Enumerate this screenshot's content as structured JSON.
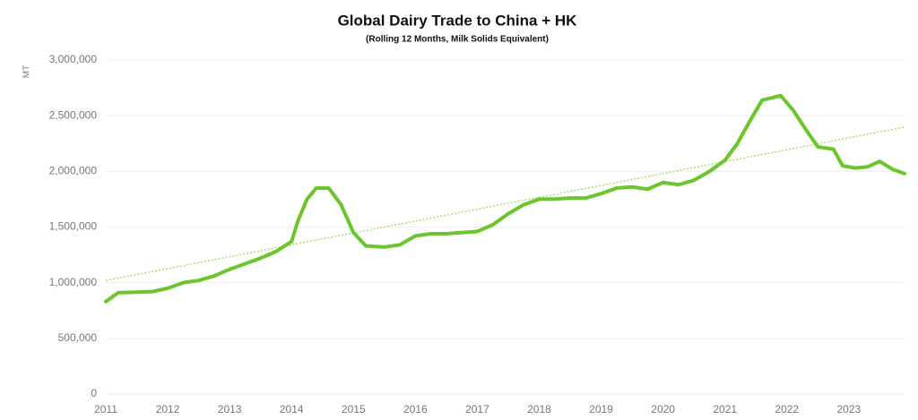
{
  "chart_data": {
    "type": "line",
    "title": "Global Dairy Trade to China + HK",
    "subtitle": "(Rolling 12 Months, Milk Solids Equivalent)",
    "y_label": "MT",
    "x": [
      2011.0,
      2011.2,
      2011.5,
      2011.75,
      2012.0,
      2012.25,
      2012.5,
      2012.75,
      2013.0,
      2013.25,
      2013.5,
      2013.75,
      2014.0,
      2014.1,
      2014.25,
      2014.4,
      2014.6,
      2014.8,
      2015.0,
      2015.2,
      2015.5,
      2015.75,
      2016.0,
      2016.25,
      2016.5,
      2016.75,
      2017.0,
      2017.25,
      2017.5,
      2017.75,
      2018.0,
      2018.25,
      2018.5,
      2018.75,
      2019.0,
      2019.25,
      2019.5,
      2019.75,
      2020.0,
      2020.25,
      2020.5,
      2020.75,
      2021.0,
      2021.2,
      2021.4,
      2021.6,
      2021.9,
      2022.1,
      2022.3,
      2022.5,
      2022.75,
      2022.9,
      2023.1,
      2023.3,
      2023.5,
      2023.7,
      2023.9
    ],
    "series": [
      {
        "color": "#6ac62a",
        "values": [
          830000,
          910000,
          915000,
          920000,
          950000,
          1000000,
          1020000,
          1060000,
          1120000,
          1170000,
          1220000,
          1280000,
          1370000,
          1550000,
          1750000,
          1850000,
          1850000,
          1700000,
          1450000,
          1330000,
          1320000,
          1340000,
          1420000,
          1440000,
          1440000,
          1450000,
          1460000,
          1520000,
          1620000,
          1700000,
          1750000,
          1750000,
          1760000,
          1760000,
          1800000,
          1850000,
          1860000,
          1840000,
          1900000,
          1880000,
          1920000,
          2000000,
          2100000,
          2250000,
          2450000,
          2640000,
          2680000,
          2550000,
          2380000,
          2220000,
          2200000,
          2050000,
          2030000,
          2040000,
          2090000,
          2020000,
          1980000
        ]
      }
    ],
    "trendline": {
      "color": "#a8e070",
      "x": [
        2011.0,
        2023.9
      ],
      "values": [
        1020000,
        2397000
      ]
    },
    "xlim": [
      2011,
      2023.9
    ],
    "xticks": [
      2011,
      2012,
      2013,
      2014,
      2015,
      2016,
      2017,
      2018,
      2019,
      2020,
      2021,
      2022,
      2023
    ],
    "ylim": [
      0,
      3000000
    ],
    "yticks": [
      0,
      {
        "value": 500000,
        "label": "500,000"
      },
      {
        "value": 1000000,
        "label": "1,000,000"
      },
      {
        "value": 1500000,
        "label": "1,500,000"
      },
      {
        "value": 2000000,
        "label": "2,000,000"
      },
      {
        "value": 2500000,
        "label": "2,500,000"
      },
      {
        "value": 3000000,
        "label": "3,000,000"
      }
    ],
    "grid": true
  }
}
